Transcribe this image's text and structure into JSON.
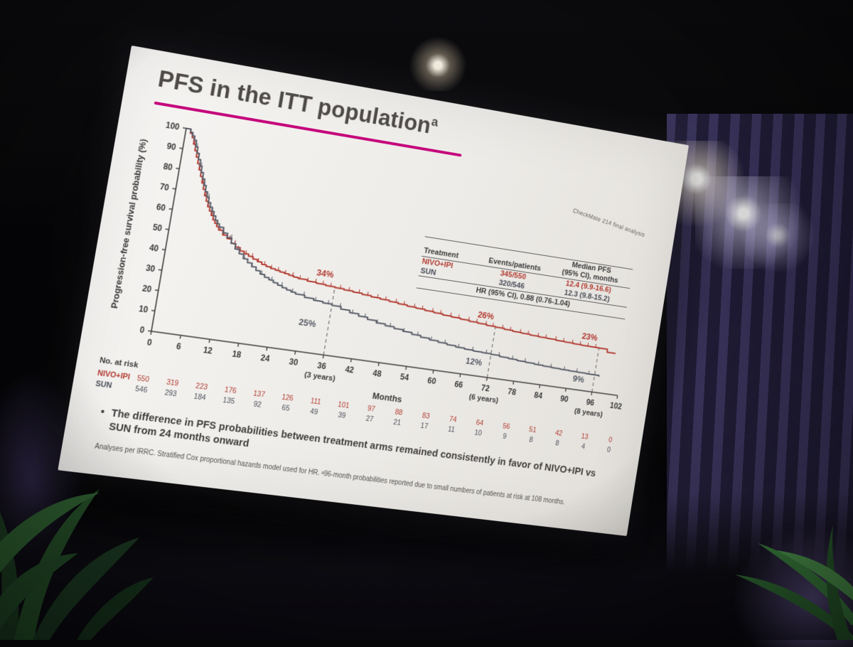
{
  "colors": {
    "accent_magenta": "#c4007a",
    "nivo_red": "#b13a30",
    "sun_gray": "#565b66"
  },
  "slide": {
    "title": "PFS in the ITT population",
    "title_superscript": "a",
    "watermark": "CheckMate 214 final analysis",
    "bullet_marker": "•",
    "bullet": "The difference in PFS probabilities between treatment arms remained consistently in favor of NIVO+IPI vs SUN from 24 months onward",
    "footnote": "Analyses per IRRC. Stratified Cox proportional hazards model used for HR. ᵃ96-month probabilities reported due to small numbers of patients at risk at 108 months.",
    "inset_table": {
      "header": {
        "treatment": "Treatment",
        "events": "Events/patients",
        "median_line1": "Median PFS",
        "median_line2": "(95% CI), months"
      },
      "rows": [
        {
          "treatment": "NIVO+IPI",
          "events": "345/550",
          "median": "12.4 (9.9-16.6)",
          "color": "#b13a30"
        },
        {
          "treatment": "SUN",
          "events": "320/546",
          "median": "12.3 (9.8-15.2)",
          "color": "#4a4e59"
        }
      ],
      "hr_row": "HR (95% CI), 0.88 (0.76-1.04)"
    },
    "at_risk": {
      "label": "No. at risk",
      "rows": [
        {
          "name": "NIVO+IPI",
          "color": "#b13a30",
          "values": [
            550,
            319,
            223,
            176,
            137,
            126,
            111,
            101,
            97,
            88,
            83,
            74,
            64,
            56,
            51,
            42,
            13,
            0
          ]
        },
        {
          "name": "SUN",
          "color": "#4a4e59",
          "values": [
            546,
            293,
            184,
            135,
            92,
            65,
            49,
            39,
            27,
            21,
            17,
            11,
            10,
            9,
            8,
            8,
            4,
            0
          ]
        }
      ]
    }
  },
  "chart_data": {
    "type": "line",
    "subtype": "kaplan-meier-step",
    "title": "PFS in the ITT population (CheckMate 214 final analysis)",
    "xlabel": "Months",
    "ylabel": "Progression-free survival probability (%)",
    "xlim": [
      0,
      102
    ],
    "ylim": [
      0,
      100
    ],
    "grid": false,
    "xticks": [
      0,
      6,
      12,
      18,
      24,
      30,
      36,
      42,
      48,
      54,
      60,
      66,
      72,
      78,
      84,
      90,
      96,
      102
    ],
    "yticks": [
      0,
      10,
      20,
      30,
      40,
      50,
      60,
      70,
      80,
      90,
      100
    ],
    "x_sub_labels": [
      {
        "x": 36,
        "label": "(3 years)"
      },
      {
        "x": 72,
        "label": "(6 years)"
      },
      {
        "x": 96,
        "label": "(8 years)"
      }
    ],
    "dashed_lines": [
      {
        "x": 36,
        "y_top": 34
      },
      {
        "x": 72,
        "y_top": 26
      },
      {
        "x": 96,
        "y_top": 23
      }
    ],
    "annotations": [
      {
        "text": "34%",
        "x": 33.5,
        "y": 38.5,
        "color": "#b13a30"
      },
      {
        "text": "25%",
        "x": 31.5,
        "y": 13,
        "color": "#565b66"
      },
      {
        "text": "26%",
        "x": 69.5,
        "y": 29.5,
        "color": "#b13a30"
      },
      {
        "text": "12%",
        "x": 68.5,
        "y": 5.5,
        "color": "#565b66"
      },
      {
        "text": "23%",
        "x": 93.5,
        "y": 26.5,
        "color": "#b13a30"
      },
      {
        "text": "9%",
        "x": 92.5,
        "y": 4,
        "color": "#565b66"
      }
    ],
    "series": [
      {
        "name": "NIVO+IPI",
        "color": "#b13a30",
        "points": [
          [
            0,
            100
          ],
          [
            1,
            98
          ],
          [
            1.5,
            96
          ],
          [
            2,
            93
          ],
          [
            2.5,
            90
          ],
          [
            3,
            87
          ],
          [
            3.5,
            84
          ],
          [
            4,
            81
          ],
          [
            4.5,
            78
          ],
          [
            5,
            75
          ],
          [
            5.5,
            72
          ],
          [
            6,
            69
          ],
          [
            6.5,
            66.5
          ],
          [
            7,
            64
          ],
          [
            7.5,
            62
          ],
          [
            8,
            60
          ],
          [
            8.5,
            58
          ],
          [
            9,
            56.5
          ],
          [
            9.5,
            55
          ],
          [
            10,
            53.5
          ],
          [
            11,
            51.5
          ],
          [
            12,
            50
          ],
          [
            13,
            48
          ],
          [
            14,
            46.5
          ],
          [
            15,
            45
          ],
          [
            16,
            44
          ],
          [
            17,
            43
          ],
          [
            18,
            42
          ],
          [
            19,
            41
          ],
          [
            20,
            40
          ],
          [
            21,
            39.3
          ],
          [
            22,
            38.7
          ],
          [
            23,
            38.2
          ],
          [
            24,
            37.7
          ],
          [
            25,
            37.2
          ],
          [
            26,
            36.7
          ],
          [
            27,
            36.2
          ],
          [
            28,
            35.8
          ],
          [
            30,
            35.2
          ],
          [
            32,
            34.7
          ],
          [
            34,
            34.3
          ],
          [
            36,
            34
          ],
          [
            38,
            33.5
          ],
          [
            40,
            33.1
          ],
          [
            42,
            32.6
          ],
          [
            44,
            32.1
          ],
          [
            46,
            31.6
          ],
          [
            48,
            31.1
          ],
          [
            50,
            30.6
          ],
          [
            52,
            30.1
          ],
          [
            54,
            29.7
          ],
          [
            56,
            29.2
          ],
          [
            58,
            28.8
          ],
          [
            60,
            28.3
          ],
          [
            62,
            27.9
          ],
          [
            64,
            27.5
          ],
          [
            66,
            27.1
          ],
          [
            68,
            26.7
          ],
          [
            70,
            26.3
          ],
          [
            72,
            26
          ],
          [
            74,
            25.6
          ],
          [
            76,
            25.2
          ],
          [
            78,
            24.9
          ],
          [
            80,
            24.6
          ],
          [
            82,
            24.3
          ],
          [
            84,
            24.1
          ],
          [
            86,
            23.8
          ],
          [
            88,
            23.6
          ],
          [
            90,
            23.4
          ],
          [
            92,
            23.2
          ],
          [
            94,
            23.1
          ],
          [
            96,
            23
          ],
          [
            98,
            21.5
          ],
          [
            100,
            21.5
          ]
        ],
        "censors": [
          2.2,
          3.4,
          4.1,
          5.2,
          6.3,
          7.1,
          8.2,
          9.4,
          10.3,
          11.2,
          12.6,
          13.8,
          15.1,
          16.4,
          17.8,
          19.2,
          20.6,
          22.1,
          23.6,
          25.2,
          26.8,
          28.4,
          30.1,
          31.8,
          33.4,
          35.1,
          37.2,
          39.1,
          41.3,
          43.2,
          45.4,
          47.2,
          49.5,
          51.3,
          53.6,
          55.4,
          57.7,
          59.5,
          61.8,
          63.6,
          65.9,
          67.7,
          69.8,
          71.4,
          73.6,
          75.4,
          77.7,
          79.5,
          81.8,
          83.6,
          85.9,
          87.7,
          89.8,
          91.6,
          93.4,
          95.2
        ]
      },
      {
        "name": "SUN",
        "color": "#565b66",
        "points": [
          [
            0,
            100
          ],
          [
            1,
            98.5
          ],
          [
            1.5,
            97
          ],
          [
            2,
            95
          ],
          [
            2.5,
            92
          ],
          [
            3,
            89
          ],
          [
            3.5,
            86
          ],
          [
            4,
            83
          ],
          [
            4.5,
            80
          ],
          [
            5,
            77
          ],
          [
            5.5,
            74
          ],
          [
            6,
            71
          ],
          [
            6.5,
            68.5
          ],
          [
            7,
            66
          ],
          [
            7.5,
            64
          ],
          [
            8,
            62
          ],
          [
            8.5,
            60
          ],
          [
            9,
            58
          ],
          [
            9.5,
            56.5
          ],
          [
            10,
            55
          ],
          [
            11,
            52.5
          ],
          [
            12,
            50.5
          ],
          [
            13,
            48
          ],
          [
            14,
            45.5
          ],
          [
            15,
            43.5
          ],
          [
            16,
            41.5
          ],
          [
            17,
            39.8
          ],
          [
            18,
            38.2
          ],
          [
            19,
            36.6
          ],
          [
            20,
            35.2
          ],
          [
            21,
            34
          ],
          [
            22,
            33
          ],
          [
            23,
            32
          ],
          [
            24,
            31
          ],
          [
            25,
            30.2
          ],
          [
            26,
            29.4
          ],
          [
            27,
            28.7
          ],
          [
            28,
            28
          ],
          [
            30,
            27
          ],
          [
            32,
            26.2
          ],
          [
            34,
            25.6
          ],
          [
            36,
            25
          ],
          [
            38,
            23.8
          ],
          [
            40,
            22.7
          ],
          [
            42,
            21.6
          ],
          [
            44,
            20.6
          ],
          [
            46,
            19.6
          ],
          [
            48,
            18.8
          ],
          [
            50,
            18
          ],
          [
            52,
            17.2
          ],
          [
            54,
            16.4
          ],
          [
            56,
            15.6
          ],
          [
            58,
            14.9
          ],
          [
            60,
            14.3
          ],
          [
            62,
            13.7
          ],
          [
            64,
            13.2
          ],
          [
            66,
            12.8
          ],
          [
            68,
            12.4
          ],
          [
            70,
            12.2
          ],
          [
            72,
            12
          ],
          [
            74,
            11.5
          ],
          [
            76,
            11.1
          ],
          [
            78,
            10.7
          ],
          [
            80,
            10.4
          ],
          [
            82,
            10.1
          ],
          [
            84,
            9.8
          ],
          [
            86,
            9.6
          ],
          [
            88,
            9.4
          ],
          [
            90,
            9.2
          ],
          [
            92,
            9.1
          ],
          [
            94,
            9
          ],
          [
            96,
            9
          ],
          [
            97,
            8.3
          ]
        ],
        "censors": [
          2.8,
          4.3,
          5.6,
          6.9,
          8.1,
          9.6,
          11.1,
          12.9,
          14.6,
          16.2,
          18.1,
          20.3,
          22.6,
          24.9,
          27.3,
          29.8,
          32.4,
          35.2,
          37.8,
          40.6,
          43.4,
          46.2,
          49.1,
          52.2,
          55.3,
          58.4,
          61.5,
          64.6,
          67.8,
          70.9,
          73.8,
          76.9,
          79.8,
          82.9,
          85.8,
          88.9,
          91.8,
          94.6
        ]
      }
    ]
  }
}
